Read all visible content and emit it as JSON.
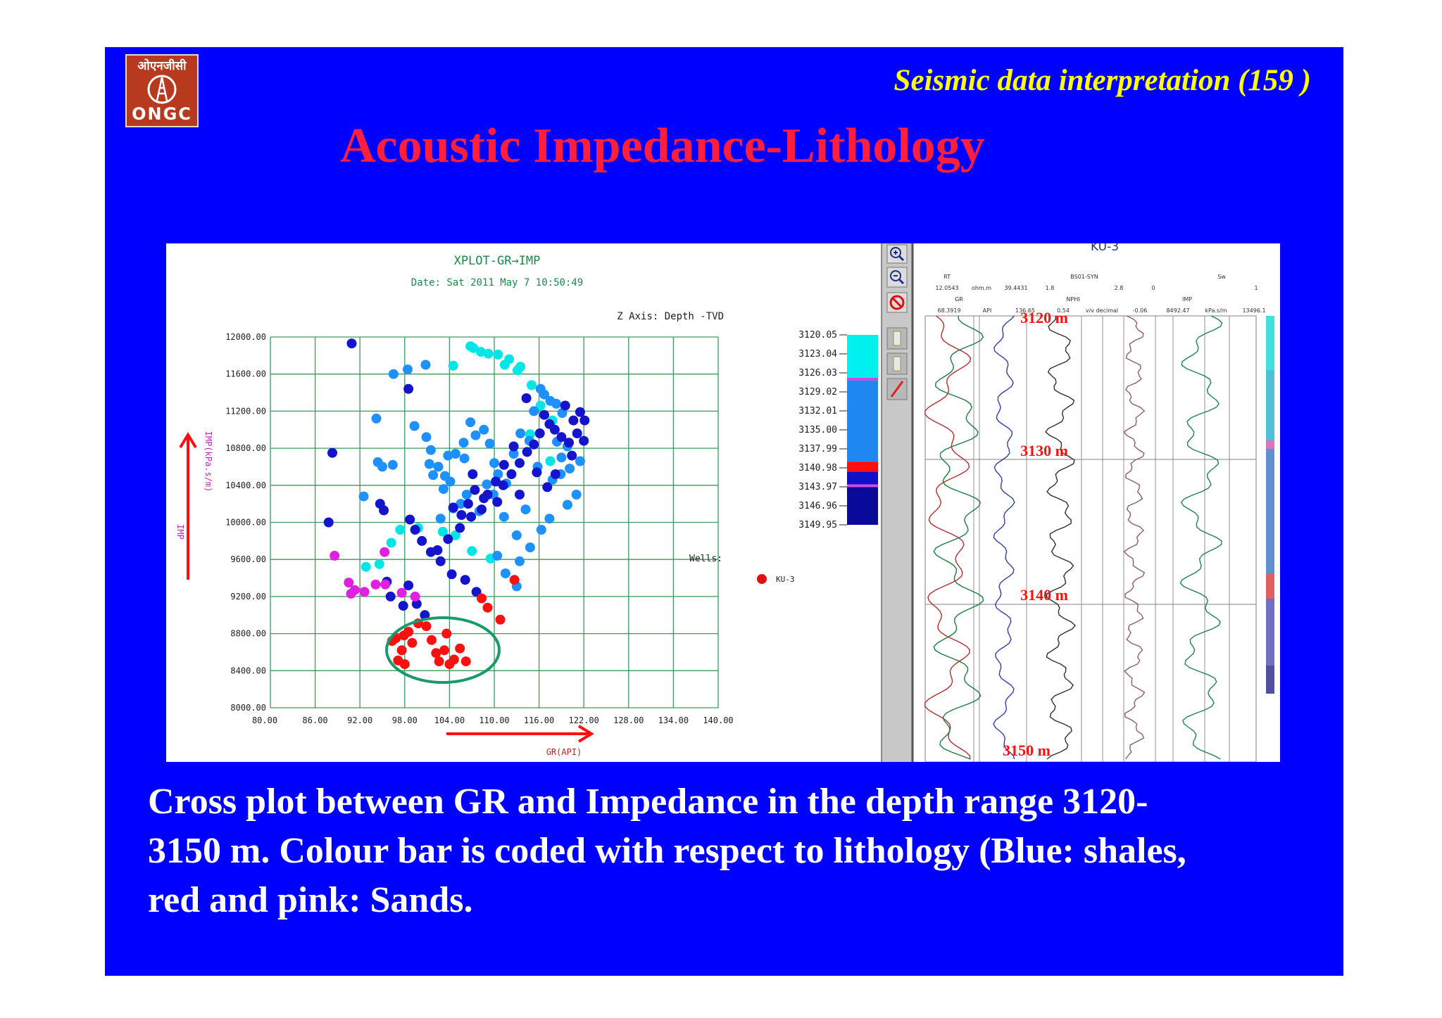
{
  "logo": {
    "hindi": "ओएनजीसी",
    "english": "ONGC",
    "color": "#b83a1e"
  },
  "header": {
    "series_title": "Seismic data interpretation (159 )"
  },
  "title": "Acoustic Impedance-Lithology",
  "caption": [
    "Cross plot between GR  and Impedance in the depth range 3120-",
    "3150 m. Colour bar is coded with respect to lithology (Blue: shales,",
    "red and pink: Sands."
  ],
  "colors": {
    "slide_bg": "#0000ff",
    "title": "#ff1f3d",
    "subtitle": "#ffff00",
    "grid": "#3a9a5a",
    "ellipse": "#1a9a6a"
  },
  "crossplot": {
    "title": "XPLOT-GR→IMP",
    "date": "Date: Sat 2011 May  7 10:50:49",
    "y_axis_label": "IMP(kPa.s/m)",
    "y_side_label": "IMP",
    "x_axis_label": "GR(API)",
    "z_axis_label": "Z Axis: Depth  -TVD",
    "wells_label": "Wells:",
    "well_name": "KU-3"
  },
  "chart_data": {
    "type": "scatter",
    "title": "XPLOT-GR→IMP",
    "xlabel": "GR(API)",
    "ylabel": "IMP(kPa.s/m)",
    "xlim": [
      80,
      140
    ],
    "ylim": [
      8000,
      12000
    ],
    "x_ticks": [
      "80.00",
      "86.00",
      "92.00",
      "98.00",
      "104.00",
      "110.00",
      "116.00",
      "122.00",
      "128.00",
      "134.00",
      "140.00"
    ],
    "y_ticks": [
      "8000.00",
      "8400.00",
      "8800.00",
      "9200.00",
      "9600.00",
      "10000.00",
      "10400.00",
      "10800.00",
      "11200.00",
      "11600.00",
      "12000.00"
    ],
    "z_ticks": [
      "3120.05",
      "3123.04",
      "3126.03",
      "3129.02",
      "3132.01",
      "3135.00",
      "3137.99",
      "3140.98",
      "3143.97",
      "3146.96",
      "3149.95"
    ],
    "z_colorbar": [
      {
        "from": 3120.05,
        "to": 3126.8,
        "color": "#00f0f0"
      },
      {
        "from": 3126.8,
        "to": 3127.2,
        "color": "#e040e0"
      },
      {
        "from": 3127.2,
        "to": 3140.0,
        "color": "#1e88f0"
      },
      {
        "from": 3140.0,
        "to": 3141.6,
        "color": "#ff1010"
      },
      {
        "from": 3141.6,
        "to": 3143.6,
        "color": "#1010c8"
      },
      {
        "from": 3143.6,
        "to": 3144.0,
        "color": "#e040e0"
      },
      {
        "from": 3144.0,
        "to": 3149.95,
        "color": "#0a0a9a"
      }
    ],
    "series": [
      {
        "color": "#00e6e6",
        "points": [
          [
            104.5,
            11690
          ],
          [
            106.8,
            11900
          ],
          [
            107.2,
            11880
          ],
          [
            108.2,
            11840
          ],
          [
            109.2,
            11820
          ],
          [
            111.4,
            11700
          ],
          [
            113.1,
            11640
          ],
          [
            115.0,
            11480
          ],
          [
            116.2,
            11260
          ],
          [
            117.8,
            11100
          ],
          [
            117.5,
            10660
          ],
          [
            114.8,
            10950
          ],
          [
            96.2,
            9780
          ],
          [
            97.4,
            9920
          ],
          [
            99.8,
            9940
          ],
          [
            103.1,
            9900
          ],
          [
            104.8,
            9860
          ],
          [
            107.0,
            9690
          ],
          [
            109.5,
            9610
          ],
          [
            92.8,
            9520
          ],
          [
            94.6,
            9550
          ],
          [
            113.5,
            11680
          ],
          [
            112.0,
            11760
          ],
          [
            110.5,
            11810
          ]
        ]
      },
      {
        "color": "#1e90ff",
        "points": [
          [
            96.5,
            11600
          ],
          [
            98.4,
            11650
          ],
          [
            100.8,
            11700
          ],
          [
            94.2,
            11120
          ],
          [
            94.4,
            10650
          ],
          [
            95.0,
            10600
          ],
          [
            96.4,
            10620
          ],
          [
            92.5,
            10280
          ],
          [
            99.3,
            11040
          ],
          [
            100.9,
            10920
          ],
          [
            101.5,
            10780
          ],
          [
            102.5,
            10600
          ],
          [
            103.4,
            10500
          ],
          [
            104.1,
            10440
          ],
          [
            105.5,
            10200
          ],
          [
            106.3,
            10300
          ],
          [
            103.2,
            10360
          ],
          [
            104.8,
            10740
          ],
          [
            106.0,
            10690
          ],
          [
            106.8,
            11080
          ],
          [
            108.6,
            11000
          ],
          [
            109.4,
            10850
          ],
          [
            110.0,
            10640
          ],
          [
            110.5,
            10520
          ],
          [
            111.6,
            10420
          ],
          [
            112.6,
            10740
          ],
          [
            113.5,
            10960
          ],
          [
            114.7,
            10880
          ],
          [
            115.3,
            11200
          ],
          [
            116.7,
            11380
          ],
          [
            116.2,
            11440
          ],
          [
            117.5,
            11310
          ],
          [
            118.3,
            11280
          ],
          [
            119.1,
            11180
          ],
          [
            118.4,
            10870
          ],
          [
            119.0,
            10700
          ],
          [
            120.1,
            10580
          ],
          [
            121.5,
            10660
          ],
          [
            121.0,
            10300
          ],
          [
            119.8,
            10190
          ],
          [
            117.4,
            10040
          ],
          [
            116.3,
            9920
          ],
          [
            114.8,
            9730
          ],
          [
            113.4,
            9580
          ],
          [
            110.4,
            9640
          ],
          [
            111.5,
            9450
          ],
          [
            113.0,
            9310
          ],
          [
            101.8,
            10510
          ],
          [
            101.3,
            10630
          ],
          [
            103.8,
            10720
          ],
          [
            105.9,
            10860
          ],
          [
            107.5,
            10940
          ],
          [
            109.0,
            10410
          ],
          [
            104.5,
            10150
          ],
          [
            102.8,
            10040
          ],
          [
            108.0,
            10120
          ],
          [
            109.9,
            10300
          ],
          [
            111.3,
            10060
          ],
          [
            114.2,
            10140
          ],
          [
            113.0,
            9860
          ],
          [
            117.8,
            10460
          ],
          [
            118.9,
            10520
          ],
          [
            119.8,
            10820
          ],
          [
            115.8,
            10600
          ]
        ]
      },
      {
        "color": "#1414cc",
        "points": [
          [
            90.9,
            11930
          ],
          [
            98.5,
            11440
          ],
          [
            88.3,
            10750
          ],
          [
            87.8,
            10000
          ],
          [
            94.7,
            10200
          ],
          [
            95.2,
            10130
          ],
          [
            98.7,
            10030
          ],
          [
            99.4,
            9920
          ],
          [
            100.3,
            9800
          ],
          [
            101.5,
            9680
          ],
          [
            102.8,
            9580
          ],
          [
            104.3,
            9440
          ],
          [
            106.1,
            9380
          ],
          [
            107.6,
            9250
          ],
          [
            95.6,
            9360
          ],
          [
            96.1,
            9200
          ],
          [
            97.8,
            9100
          ],
          [
            98.5,
            9320
          ],
          [
            99.6,
            9120
          ],
          [
            100.7,
            9000
          ],
          [
            104.5,
            10160
          ],
          [
            105.6,
            10080
          ],
          [
            106.5,
            10200
          ],
          [
            107.4,
            10350
          ],
          [
            108.3,
            10140
          ],
          [
            109.1,
            10300
          ],
          [
            110.4,
            10220
          ],
          [
            111.2,
            10400
          ],
          [
            112.3,
            10520
          ],
          [
            113.4,
            10640
          ],
          [
            114.4,
            10760
          ],
          [
            115.3,
            10840
          ],
          [
            116.1,
            10960
          ],
          [
            117.4,
            11060
          ],
          [
            118.1,
            11000
          ],
          [
            119.0,
            10920
          ],
          [
            120.0,
            10860
          ],
          [
            121.1,
            10960
          ],
          [
            122.0,
            10880
          ],
          [
            120.6,
            11100
          ],
          [
            119.5,
            11260
          ],
          [
            116.7,
            11160
          ],
          [
            114.3,
            11340
          ],
          [
            112.6,
            10820
          ],
          [
            111.3,
            10620
          ],
          [
            110.2,
            10440
          ],
          [
            108.6,
            10260
          ],
          [
            106.9,
            10060
          ],
          [
            105.4,
            9940
          ],
          [
            103.8,
            9820
          ],
          [
            102.4,
            9700
          ],
          [
            115.7,
            10540
          ],
          [
            117.1,
            10380
          ],
          [
            118.2,
            10520
          ],
          [
            113.4,
            10300
          ],
          [
            122.1,
            11100
          ],
          [
            121.5,
            11190
          ],
          [
            120.4,
            10720
          ],
          [
            107.1,
            10520
          ]
        ]
      },
      {
        "color": "#e020e0",
        "points": [
          [
            88.6,
            9640
          ],
          [
            90.5,
            9350
          ],
          [
            91.3,
            9270
          ],
          [
            90.8,
            9230
          ],
          [
            92.6,
            9250
          ],
          [
            94.1,
            9330
          ],
          [
            95.4,
            9330
          ],
          [
            97.6,
            9240
          ],
          [
            95.3,
            9680
          ],
          [
            99.4,
            9200
          ]
        ]
      },
      {
        "color": "#ff1010",
        "points": [
          [
            96.3,
            8720
          ],
          [
            96.8,
            8750
          ],
          [
            97.6,
            8620
          ],
          [
            97.9,
            8780
          ],
          [
            98.5,
            8820
          ],
          [
            99.0,
            8700
          ],
          [
            99.8,
            8910
          ],
          [
            100.9,
            8880
          ],
          [
            101.6,
            8730
          ],
          [
            102.2,
            8590
          ],
          [
            102.6,
            8500
          ],
          [
            103.3,
            8620
          ],
          [
            104.0,
            8470
          ],
          [
            104.6,
            8520
          ],
          [
            105.4,
            8640
          ],
          [
            106.2,
            8500
          ],
          [
            108.3,
            9180
          ],
          [
            109.1,
            9080
          ],
          [
            110.8,
            8950
          ],
          [
            112.7,
            9380
          ],
          [
            97.1,
            8510
          ],
          [
            98.0,
            8470
          ],
          [
            103.6,
            8800
          ]
        ]
      }
    ]
  },
  "well_log": {
    "title": "KU-3",
    "depth_markers": [
      "3120 m",
      "3130 m",
      "3140 m",
      "3150 m"
    ],
    "headers_row1": [
      "RT",
      "",
      "",
      "",
      "BS01-SYN",
      "",
      "",
      "",
      "Sw",
      ""
    ],
    "headers_row2": [
      "12.0543",
      "ohm.m",
      "39.4431",
      "1.8",
      "",
      "2.8",
      "0",
      "",
      "",
      "1"
    ],
    "headers_row3": [
      "GR",
      "",
      "NPHI",
      "",
      "IMP",
      ""
    ],
    "headers_row4": [
      "68.3919",
      "API",
      "136.65",
      "0.54",
      "v/v decimal",
      "-0.06",
      "8492.47",
      "kPa.s/m",
      "13496.1"
    ]
  },
  "toolbar": {
    "icons": [
      "zoom-in-icon",
      "zoom-out-icon",
      "no-entry-icon",
      "layer-up-icon",
      "layer-down-icon",
      "draw-line-icon"
    ]
  }
}
